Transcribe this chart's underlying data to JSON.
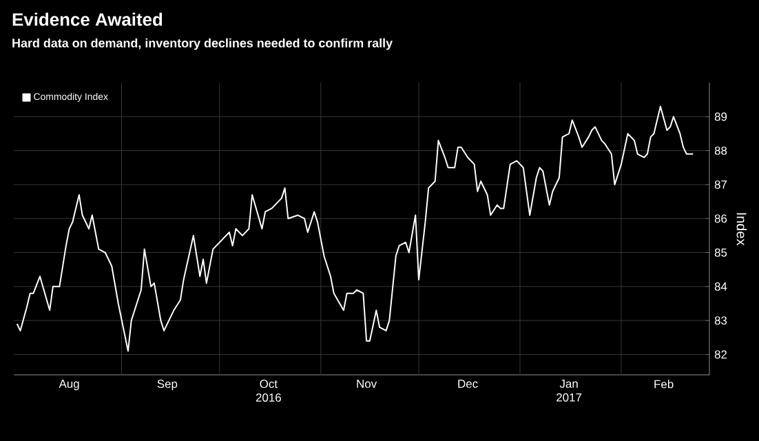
{
  "chart_data": {
    "type": "line",
    "title": "Evidence Awaited",
    "subtitle": "Hard data on demand, inventory declines needed to confirm rally",
    "ylabel": "Index",
    "x": [
      "2016-07-31",
      "2016-08-01",
      "2016-08-03",
      "2016-08-04",
      "2016-08-05",
      "2016-08-07",
      "2016-08-10",
      "2016-08-11",
      "2016-08-13",
      "2016-08-15",
      "2016-08-16",
      "2016-08-17",
      "2016-08-19",
      "2016-08-20",
      "2016-08-22",
      "2016-08-23",
      "2016-08-25",
      "2016-08-27",
      "2016-08-29",
      "2016-08-31",
      "2016-09-03",
      "2016-09-04",
      "2016-09-07",
      "2016-09-08",
      "2016-09-10",
      "2016-09-11",
      "2016-09-13",
      "2016-09-14",
      "2016-09-16",
      "2016-09-17",
      "2016-09-19",
      "2016-09-20",
      "2016-09-23",
      "2016-09-25",
      "2016-09-26",
      "2016-09-27",
      "2016-09-29",
      "2016-10-01",
      "2016-10-02",
      "2016-10-04",
      "2016-10-05",
      "2016-10-06",
      "2016-10-08",
      "2016-10-10",
      "2016-10-11",
      "2016-10-14",
      "2016-10-15",
      "2016-10-17",
      "2016-10-18",
      "2016-10-20",
      "2016-10-21",
      "2016-10-22",
      "2016-10-25",
      "2016-10-27",
      "2016-10-28",
      "2016-10-30",
      "2016-10-31",
      "2016-11-02",
      "2016-11-04",
      "2016-11-05",
      "2016-11-08",
      "2016-11-09",
      "2016-11-11",
      "2016-11-12",
      "2016-11-14",
      "2016-11-15",
      "2016-11-16",
      "2016-11-18",
      "2016-11-19",
      "2016-11-21",
      "2016-11-22",
      "2016-11-24",
      "2016-11-25",
      "2016-11-27",
      "2016-11-28",
      "2016-11-30",
      "2016-12-01",
      "2016-12-03",
      "2016-12-04",
      "2016-12-06",
      "2016-12-07",
      "2016-12-09",
      "2016-12-10",
      "2016-12-12",
      "2016-12-13",
      "2016-12-14",
      "2016-12-16",
      "2016-12-18",
      "2016-12-19",
      "2016-12-20",
      "2016-12-22",
      "2016-12-23",
      "2016-12-25",
      "2016-12-26",
      "2016-12-27",
      "2016-12-29",
      "2016-12-31",
      "2017-01-01",
      "2017-01-02",
      "2017-01-04",
      "2017-01-06",
      "2017-01-07",
      "2017-01-08",
      "2017-01-10",
      "2017-01-11",
      "2017-01-13",
      "2017-01-14",
      "2017-01-16",
      "2017-01-17",
      "2017-01-19",
      "2017-01-20",
      "2017-01-22",
      "2017-01-23",
      "2017-01-24",
      "2017-01-26",
      "2017-01-27",
      "2017-01-29",
      "2017-01-30",
      "2017-02-01",
      "2017-02-03",
      "2017-02-05",
      "2017-02-06",
      "2017-02-08",
      "2017-02-09",
      "2017-02-10",
      "2017-02-11",
      "2017-02-13",
      "2017-02-15",
      "2017-02-16",
      "2017-02-17",
      "2017-02-19",
      "2017-02-20",
      "2017-02-21",
      "2017-02-23"
    ],
    "series": [
      {
        "name": "Commodity Index",
        "color": "#ffffff",
        "values": [
          82.9,
          82.7,
          83.4,
          83.8,
          83.8,
          84.3,
          83.3,
          84.0,
          84.0,
          85.2,
          85.7,
          85.9,
          86.7,
          86.1,
          85.7,
          86.1,
          85.1,
          85.0,
          84.6,
          83.5,
          82.1,
          83.0,
          83.9,
          85.1,
          84.0,
          84.1,
          83.0,
          82.7,
          83.1,
          83.3,
          83.6,
          84.2,
          85.5,
          84.3,
          84.8,
          84.1,
          85.1,
          85.3,
          85.4,
          85.6,
          85.2,
          85.7,
          85.5,
          85.7,
          86.7,
          85.7,
          86.2,
          86.3,
          86.4,
          86.6,
          86.9,
          86.0,
          86.1,
          86.0,
          85.6,
          86.2,
          85.9,
          84.9,
          84.3,
          83.8,
          83.3,
          83.8,
          83.8,
          83.9,
          83.8,
          82.4,
          82.4,
          83.3,
          82.8,
          82.7,
          83.0,
          84.9,
          85.2,
          85.3,
          85.0,
          86.1,
          84.2,
          85.9,
          86.9,
          87.1,
          88.3,
          87.8,
          87.5,
          87.5,
          88.1,
          88.1,
          87.8,
          87.6,
          86.8,
          87.1,
          86.7,
          86.1,
          86.4,
          86.3,
          86.3,
          87.6,
          87.7,
          87.6,
          87.5,
          86.1,
          87.2,
          87.5,
          87.4,
          86.4,
          86.8,
          87.2,
          88.4,
          88.5,
          88.9,
          88.4,
          88.1,
          88.4,
          88.6,
          88.7,
          88.3,
          88.2,
          87.9,
          87.0,
          87.6,
          88.5,
          88.3,
          87.9,
          87.8,
          87.9,
          88.4,
          88.5,
          89.3,
          88.6,
          88.7,
          89.0,
          88.5,
          88.1,
          87.9,
          87.9
        ]
      }
    ],
    "xlim": [
      "2016-07-30",
      "2017-02-28"
    ],
    "ylim": [
      81.4,
      90
    ],
    "xticks": [
      {
        "value": "2016-08-16",
        "label": "Aug"
      },
      {
        "value": "2016-09-15",
        "label": "Sep"
      },
      {
        "value": "2016-10-16",
        "label": "Oct 2016"
      },
      {
        "value": "2016-11-15",
        "label": "Nov"
      },
      {
        "value": "2016-12-16",
        "label": "Dec"
      },
      {
        "value": "2017-01-16",
        "label": "Jan 2017"
      },
      {
        "value": "2017-02-14",
        "label": "Feb"
      },
      {
        "value": "2016-09-01",
        "label": null
      },
      {
        "value": "2016-10-01",
        "label": null
      },
      {
        "value": "2016-11-01",
        "label": null
      },
      {
        "value": "2016-12-01",
        "label": null
      },
      {
        "value": "2017-01-01",
        "label": null
      },
      {
        "value": "2017-02-01",
        "label": null
      }
    ],
    "yticks": [
      82,
      83,
      84,
      85,
      86,
      87,
      88,
      89
    ],
    "grid": true,
    "legend": "top left",
    "line_style": "solid"
  }
}
